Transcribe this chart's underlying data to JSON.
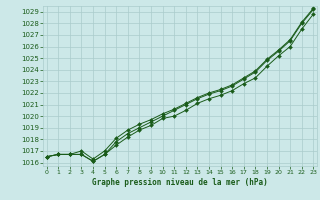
{
  "x": [
    0,
    1,
    2,
    3,
    4,
    5,
    6,
    7,
    8,
    9,
    10,
    11,
    12,
    13,
    14,
    15,
    16,
    17,
    18,
    19,
    20,
    21,
    22,
    23
  ],
  "line1": [
    1016.5,
    1016.7,
    1016.7,
    1016.7,
    1016.1,
    1016.7,
    1017.5,
    1018.2,
    1018.8,
    1019.2,
    1019.8,
    1020.0,
    1020.5,
    1021.1,
    1021.5,
    1021.8,
    1022.2,
    1022.8,
    1023.3,
    1024.3,
    1025.2,
    1026.0,
    1027.5,
    1028.8
  ],
  "line2": [
    1016.5,
    1016.7,
    1016.7,
    1016.7,
    1016.1,
    1016.7,
    1017.8,
    1018.5,
    1019.0,
    1019.5,
    1020.0,
    1020.5,
    1021.0,
    1021.5,
    1021.9,
    1022.2,
    1022.6,
    1023.2,
    1023.8,
    1024.8,
    1025.6,
    1026.5,
    1028.0,
    1029.2
  ],
  "line3": [
    1016.5,
    1016.7,
    1016.7,
    1017.0,
    1016.3,
    1017.0,
    1018.1,
    1018.8,
    1019.3,
    1019.7,
    1020.2,
    1020.6,
    1021.1,
    1021.6,
    1022.0,
    1022.3,
    1022.7,
    1023.3,
    1023.9,
    1024.9,
    1025.7,
    1026.6,
    1028.1,
    1029.3
  ],
  "yticks": [
    1016,
    1017,
    1018,
    1019,
    1020,
    1021,
    1022,
    1023,
    1024,
    1025,
    1026,
    1027,
    1028,
    1029
  ],
  "xticks": [
    0,
    1,
    2,
    3,
    4,
    5,
    6,
    7,
    8,
    9,
    10,
    11,
    12,
    13,
    14,
    15,
    16,
    17,
    18,
    19,
    20,
    21,
    22,
    23
  ],
  "xlabel": "Graphe pression niveau de la mer (hPa)",
  "line_color": "#1a5c1a",
  "bg_color": "#cce8e8",
  "grid_color": "#aacccc",
  "marker": "D",
  "xlim": [
    -0.3,
    23.3
  ],
  "ylim": [
    1015.7,
    1029.5
  ]
}
